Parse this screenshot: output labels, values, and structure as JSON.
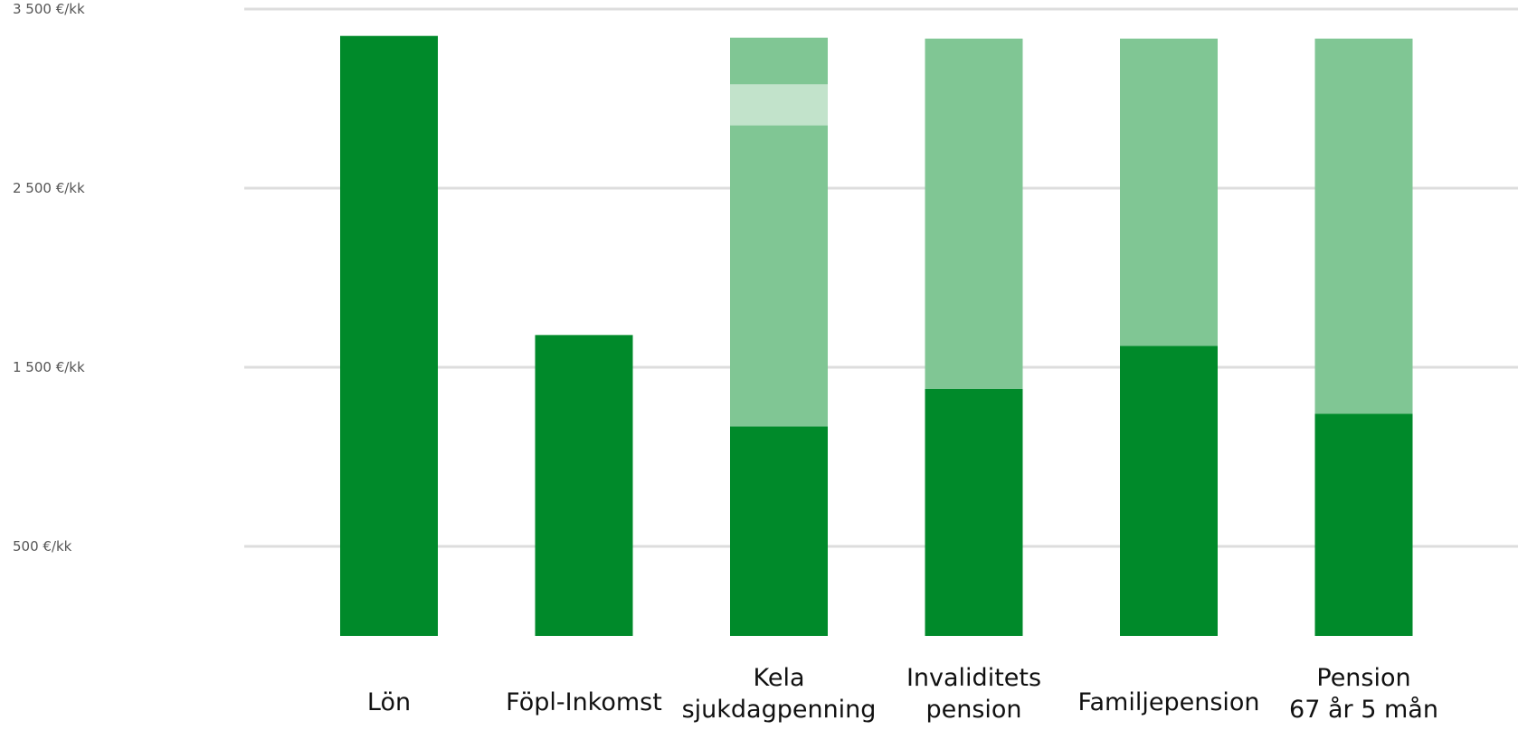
{
  "chart_data": {
    "type": "bar",
    "stacked": true,
    "categories": [
      [
        "Lön"
      ],
      [
        "Föpl-Inkomst"
      ],
      [
        "Kela",
        "sjukdagpenning"
      ],
      [
        "Invaliditets",
        "pension"
      ],
      [
        "Familjepension"
      ],
      [
        "Pension",
        "67 år 5 mån"
      ]
    ],
    "series": [
      {
        "color": "#008a2a",
        "values": [
          3350,
          1680,
          1170,
          1380,
          1620,
          1240
        ]
      },
      {
        "color": "#80c694",
        "values": [
          0,
          0,
          2170,
          1955,
          1715,
          2095
        ]
      }
    ],
    "highlight_band": {
      "category_index": 2,
      "from": 2850,
      "to": 3080,
      "color": "#c2e3cb"
    },
    "y_ticks": [
      {
        "value": 500,
        "label": "500 €/kk"
      },
      {
        "value": 1500,
        "label": "1 500 €/kk"
      },
      {
        "value": 2500,
        "label": "2 500 €/kk"
      },
      {
        "value": 3500,
        "label": "3 500 €/kk"
      }
    ],
    "ylim": [
      0,
      3500
    ],
    "grid": true,
    "gridline_color": "#dddddd"
  }
}
